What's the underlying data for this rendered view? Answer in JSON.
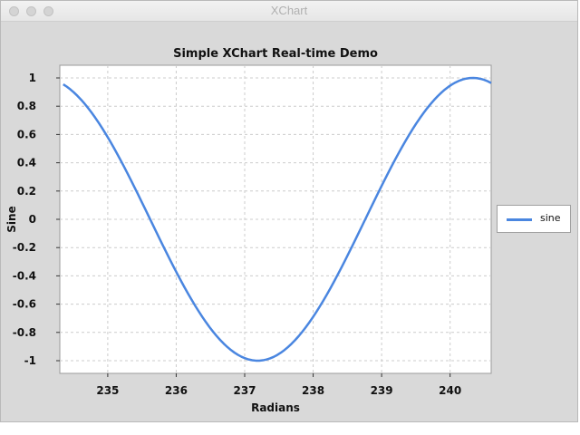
{
  "window": {
    "title": "XChart"
  },
  "chart_data": {
    "type": "line",
    "title": "Simple XChart Real-time Demo",
    "xlabel": "Radians",
    "ylabel": "Sine",
    "xlim": [
      234.3,
      240.6
    ],
    "ylim": [
      -1,
      1
    ],
    "xticks": [
      235,
      236,
      237,
      238,
      239,
      240
    ],
    "yticks": [
      -1,
      -0.8,
      -0.6,
      -0.4,
      -0.2,
      0,
      0.2,
      0.4,
      0.6,
      0.8,
      1
    ],
    "grid": true,
    "legend": "right",
    "series": [
      {
        "name": "sine",
        "color": "#4a86e0",
        "function": "sin",
        "x_start": 234.35,
        "x_end": 240.6,
        "samples": 120
      }
    ]
  }
}
